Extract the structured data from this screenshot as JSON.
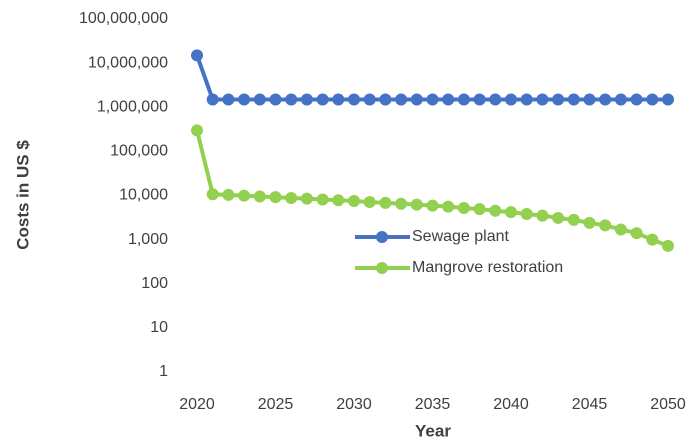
{
  "chart_data": {
    "type": "line",
    "log_scale_y": true,
    "grid": false,
    "legend": "center right",
    "xlabel": "Year",
    "ylabel": "Costs in US $",
    "x": [
      2020,
      2021,
      2022,
      2023,
      2024,
      2025,
      2026,
      2027,
      2028,
      2029,
      2030,
      2031,
      2032,
      2033,
      2034,
      2035,
      2036,
      2037,
      2038,
      2039,
      2040,
      2041,
      2042,
      2043,
      2044,
      2045,
      2046,
      2047,
      2048,
      2049,
      2050
    ],
    "xlim": [
      2020,
      2050
    ],
    "xticks": [
      2020,
      2025,
      2030,
      2035,
      2040,
      2045,
      2050
    ],
    "ylim": [
      1,
      100000000
    ],
    "yticks": [
      1,
      10,
      100,
      {
        "value": 1000,
        "label": "1,000"
      },
      {
        "value": 10000,
        "label": "10,000"
      },
      {
        "value": 100000,
        "label": "100,000"
      },
      {
        "value": 1000000,
        "label": "1,000,000"
      },
      {
        "value": 10000000,
        "label": "10,000,000"
      },
      {
        "value": 100000000,
        "label": "100,000,000"
      }
    ],
    "series": [
      {
        "name": "Sewage plant",
        "color": "#4472c4",
        "values": [
          15000000,
          1500000,
          1500000,
          1500000,
          1500000,
          1500000,
          1500000,
          1500000,
          1500000,
          1500000,
          1500000,
          1500000,
          1500000,
          1500000,
          1500000,
          1500000,
          1500000,
          1500000,
          1500000,
          1500000,
          1500000,
          1500000,
          1500000,
          1500000,
          1500000,
          1500000,
          1500000,
          1500000,
          1500000,
          1500000,
          1500000
        ]
      },
      {
        "name": "Mangrove restoration",
        "color": "#92d050",
        "values": [
          300000,
          10700,
          10300,
          9900,
          9500,
          9200,
          8800,
          8500,
          8100,
          7800,
          7500,
          7100,
          6800,
          6500,
          6200,
          5900,
          5600,
          5200,
          4900,
          4500,
          4200,
          3800,
          3500,
          3100,
          2800,
          2400,
          2100,
          1700,
          1400,
          1000,
          720
        ]
      }
    ]
  }
}
